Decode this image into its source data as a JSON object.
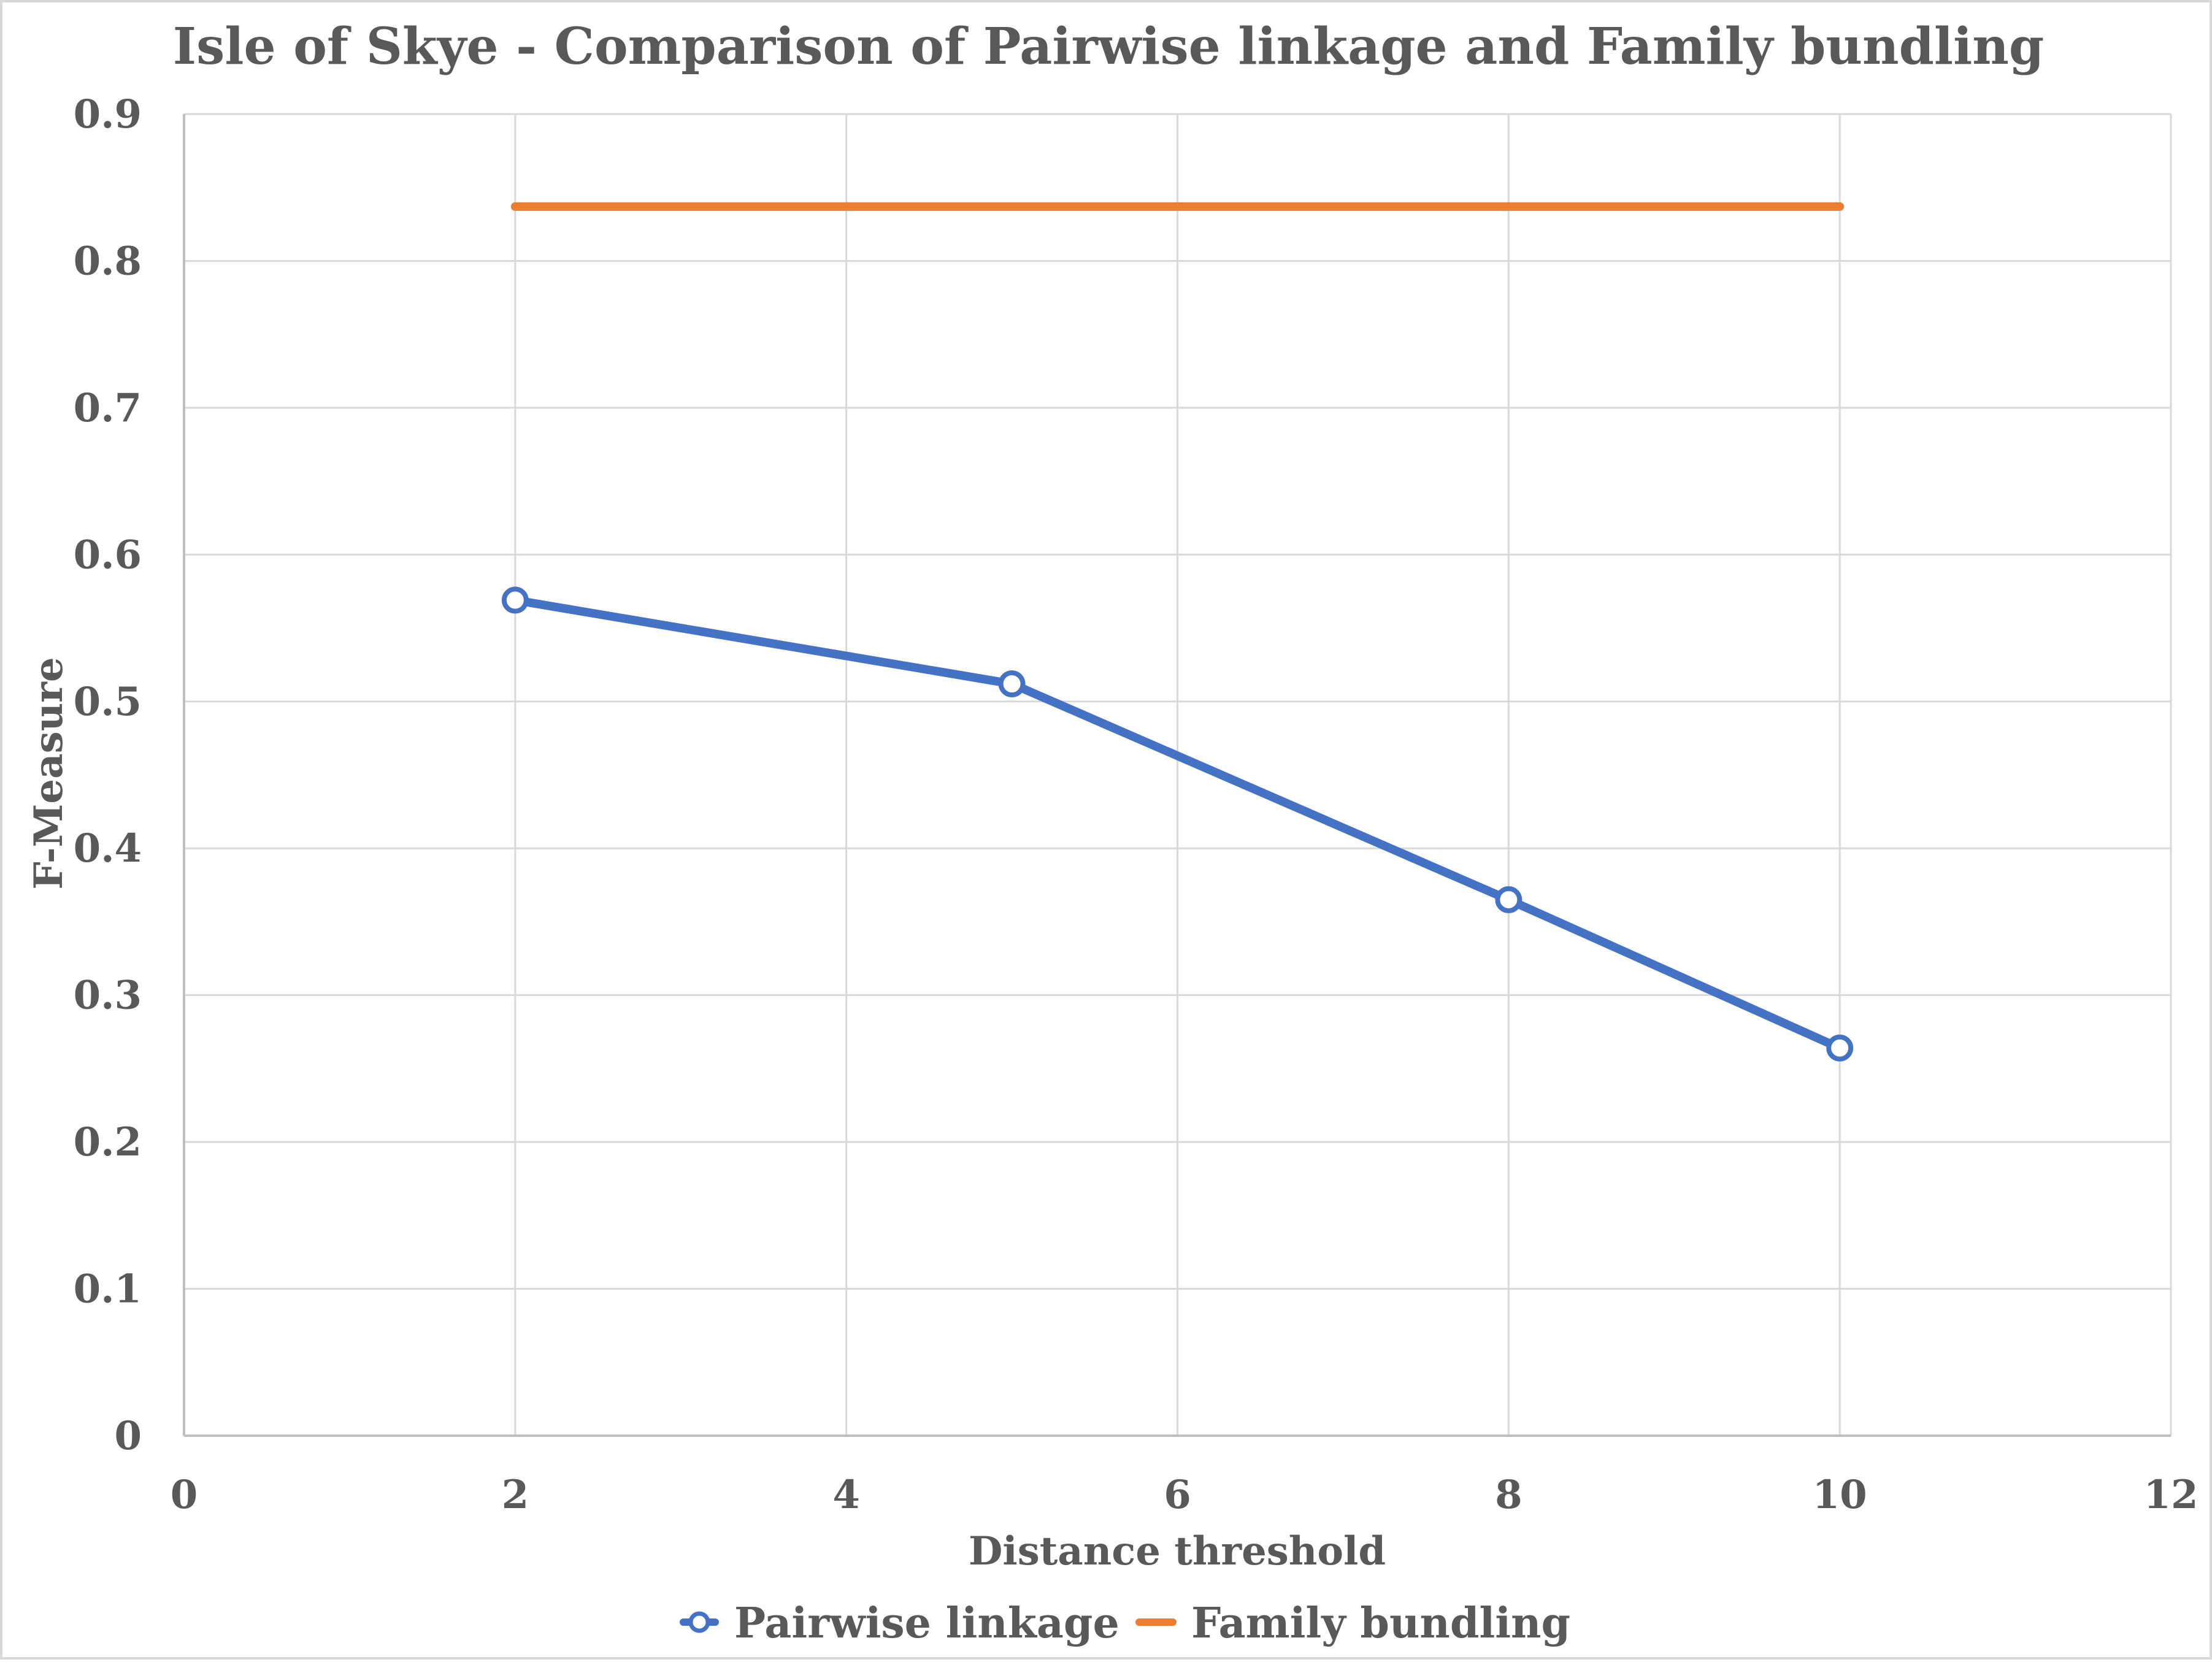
{
  "chart_data": {
    "type": "scatter",
    "title": "Isle of Skye - Comparison of Pairwise linkage and Family bundling",
    "xlabel": "Distance threshold",
    "ylabel": "F-Measure",
    "xlim": [
      0,
      12
    ],
    "ylim": [
      0,
      0.9
    ],
    "xticks": [
      0,
      2,
      4,
      6,
      8,
      10,
      12
    ],
    "yticks": [
      0,
      0.1,
      0.2,
      0.3,
      0.4,
      0.5,
      0.6,
      0.7,
      0.8,
      0.9
    ],
    "grid": true,
    "legend_position": "bottom",
    "series": [
      {
        "name": "Pairwise linkage",
        "x": [
          2,
          5,
          8,
          10
        ],
        "y": [
          0.569,
          0.512,
          0.365,
          0.264
        ],
        "color": "#4472c4",
        "marker": "circle-open",
        "line": true
      },
      {
        "name": "Family bundling",
        "x": [
          2,
          10
        ],
        "y": [
          0.837,
          0.837
        ],
        "color": "#ed7d31",
        "marker": "none",
        "line": true
      }
    ]
  }
}
